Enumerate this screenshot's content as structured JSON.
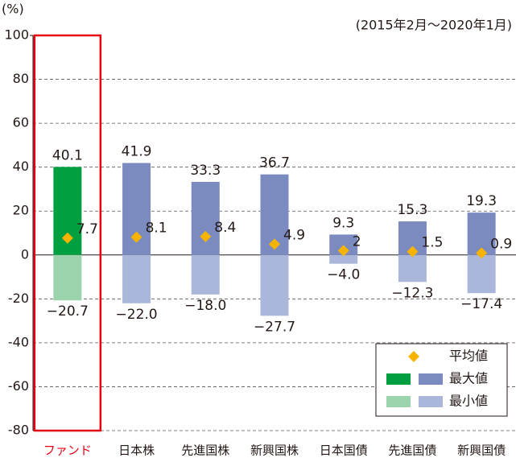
{
  "chart_data": {
    "type": "bar",
    "y_unit": "(%)",
    "subtitle": "(2015年2月～2020年1月)",
    "categories": [
      "ファンド",
      "日本株",
      "先進国株",
      "新興国株",
      "日本国債",
      "先進国債",
      "新興国債"
    ],
    "highlight_index": 0,
    "highlight_color": "#e60012",
    "series": [
      {
        "name": "平均値",
        "marker": "diamond",
        "color": "#f6b400",
        "values": [
          7.7,
          8.1,
          8.4,
          4.9,
          2.0,
          1.5,
          0.9
        ]
      },
      {
        "name": "最大値",
        "color": "#7b8bc0",
        "highlight_color": "#00a040",
        "values": [
          40.1,
          41.9,
          33.3,
          36.7,
          9.3,
          15.3,
          19.3
        ]
      },
      {
        "name": "最小値",
        "color": "#aab7da",
        "highlight_color": "#9bd3ad",
        "values": [
          -20.7,
          -22.0,
          -18.0,
          -27.7,
          -4.0,
          -12.3,
          -17.4
        ],
        "value_labels": [
          "−20.7",
          "−22.0",
          "−18.0",
          "−27.7",
          "−4.0",
          "−12.3",
          "−17.4"
        ]
      }
    ],
    "ylim": [
      -80,
      100
    ],
    "yticks": [
      -80,
      -60,
      -40,
      -20,
      0,
      20,
      40,
      60,
      80,
      100
    ],
    "grid": true,
    "legend": "lower right"
  }
}
